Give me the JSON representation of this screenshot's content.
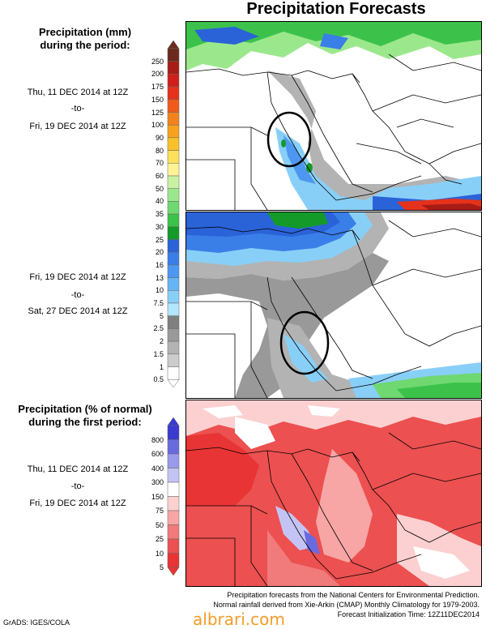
{
  "title": "Precipitation Forecasts",
  "panel1": {
    "title_line1": "Precipitation (mm)",
    "title_line2": "during the period:",
    "period_start": "Thu, 11 DEC 2014 at 12Z",
    "to": "-to-",
    "period_end": "Fri, 19 DEC 2014 at 12Z"
  },
  "panel2": {
    "period_start": "Fri, 19 DEC 2014 at 12Z",
    "to": "-to-",
    "period_end": "Sat, 27 DEC 2014 at 12Z"
  },
  "panel3": {
    "title_line1": "Precipitation (% of normal)",
    "title_line2": "during the first period:",
    "period_start": "Thu, 11 DEC 2014 at 12Z",
    "to": "-to-",
    "period_end": "Fri, 19 DEC 2014 at 12Z"
  },
  "legend_mm": {
    "levels": [
      "250",
      "200",
      "175",
      "150",
      "125",
      "100",
      "90",
      "80",
      "70",
      "60",
      "50",
      "40",
      "35",
      "30",
      "25",
      "20",
      "16",
      "13",
      "10",
      "7.5",
      "5",
      "2.5",
      "2",
      "1.5",
      "1",
      "0.5"
    ],
    "colors": [
      "#6b2a1c",
      "#a81c16",
      "#cf1f1a",
      "#e5321c",
      "#ef5a1b",
      "#f2831c",
      "#f7a21f",
      "#fbc12a",
      "#fde05a",
      "#fff296",
      "#c8f2a0",
      "#9be88c",
      "#6fd870",
      "#3cc24a",
      "#149a28",
      "#2a63d8",
      "#3a7ee8",
      "#4d97f0",
      "#66b4f6",
      "#88cff8",
      "#b2e6fb",
      "#7f7f7f",
      "#999999",
      "#b3b3b3",
      "#cccccc",
      "#ffffff"
    ]
  },
  "legend_pct": {
    "levels": [
      "800",
      "600",
      "400",
      "300",
      "150",
      "75",
      "50",
      "25",
      "10",
      "5"
    ],
    "colors": [
      "#3a3ad0",
      "#6a6ae0",
      "#9a9aec",
      "#c4c4f4",
      "#ffffff",
      "#fcd0d0",
      "#f7a5a5",
      "#f17a7a",
      "#ec5050",
      "#e83434"
    ]
  },
  "footer": {
    "line1": "Precipitation forecasts from the National Centers for Environmental Prediction.",
    "line2": "Normal rainfall derived from Xie-Arkin (CMAP) Monthly Climatology for 1979-2003.",
    "line3": "Forecast Initialization Time: 12Z11DEC2014"
  },
  "credit": "GrADS: IGES/COLA",
  "watermark": "albrari.com"
}
